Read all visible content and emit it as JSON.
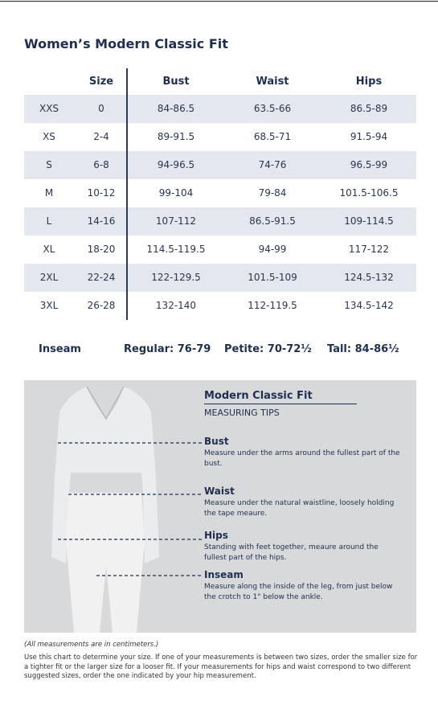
{
  "title": "Women’s Modern Classic Fit",
  "table": {
    "columns": [
      "",
      "Size",
      "Bust",
      "Waist",
      "Hips"
    ],
    "rows": [
      [
        "XXS",
        "0",
        "84-86.5",
        "63.5-66",
        "86.5-89"
      ],
      [
        "XS",
        "2-4",
        "89-91.5",
        "68.5-71",
        "91.5-94"
      ],
      [
        "S",
        "6-8",
        "94-96.5",
        "74-76",
        "96.5-99"
      ],
      [
        "M",
        "10-12",
        "99-104",
        "79-84",
        "101.5-106.5"
      ],
      [
        "L",
        "14-16",
        "107-112",
        "86.5-91.5",
        "109-114.5"
      ],
      [
        "XL",
        "18-20",
        "114.5-119.5",
        "94-99",
        "117-122"
      ],
      [
        "2XL",
        "22-24",
        "122-129.5",
        "101.5-109",
        "124.5-132"
      ],
      [
        "3XL",
        "26-28",
        "132-140",
        "112-119.5",
        "134.5-142"
      ]
    ]
  },
  "inseam": {
    "label": "Inseam",
    "regular": "Regular: 76-79",
    "petite": "Petite: 70-72½",
    "tall": "Tall: 84-86½"
  },
  "tips": {
    "title": "Modern Classic Fit",
    "subtitle": "MEASURING TIPS",
    "items": [
      {
        "name": "Bust",
        "text": "Measure under the arms around the fullest part of the bust."
      },
      {
        "name": "Waist",
        "text": "Measure under the natural waistline, loosely holding the tape meaure."
      },
      {
        "name": "Hips",
        "text": "Standing with feet together, meaure around the fullest part of the hips."
      },
      {
        "name": "Inseam",
        "text": "Measure along the inside of the leg, from just below the crotch to 1\" below the ankle."
      }
    ]
  },
  "note": "(All measurements are in centimeters.)",
  "description": "Use this chart to determine your size. If one of your measurements is between two sizes, order the smaller size for a tighter fit or the larger size for a looser fit. If your measurements for hips and waist correspond to two different suggested sizes, order the one indicated by your hip measurement."
}
